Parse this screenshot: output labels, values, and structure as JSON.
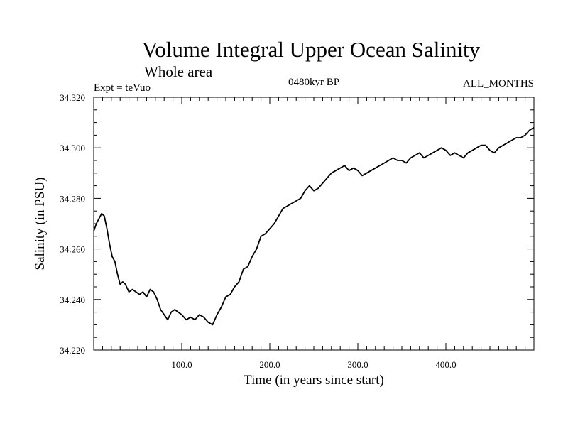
{
  "chart_data": {
    "type": "line",
    "title": "Volume Integral Upper Ocean Salinity",
    "subtitle": "Whole area",
    "left_label": "Expt = teVuo",
    "center_label": "0480kyr BP",
    "right_label": "ALL_MONTHS",
    "xlabel": "Time (in years since start)",
    "ylabel": "Salinity (in PSU)",
    "xlim": [
      0,
      500
    ],
    "ylim": [
      34.22,
      34.32
    ],
    "xticks": [
      100,
      200,
      300,
      400
    ],
    "xtick_labels": [
      "100.0",
      "200.0",
      "300.0",
      "400.0"
    ],
    "yticks": [
      34.22,
      34.24,
      34.26,
      34.28,
      34.3,
      34.32
    ],
    "ytick_labels": [
      "34.220",
      "34.240",
      "34.260",
      "34.280",
      "34.300",
      "34.320"
    ],
    "grid": false,
    "series": [
      {
        "color": "#000000",
        "x": [
          0,
          3,
          6,
          9,
          12,
          15,
          18,
          21,
          24,
          27,
          30,
          33,
          36,
          40,
          44,
          48,
          52,
          56,
          60,
          64,
          68,
          72,
          76,
          80,
          84,
          88,
          92,
          96,
          100,
          105,
          110,
          115,
          120,
          125,
          130,
          135,
          140,
          145,
          150,
          155,
          160,
          165,
          170,
          175,
          180,
          185,
          190,
          195,
          200,
          205,
          210,
          215,
          220,
          225,
          230,
          235,
          240,
          245,
          250,
          255,
          260,
          265,
          270,
          275,
          280,
          285,
          290,
          295,
          300,
          305,
          310,
          315,
          320,
          325,
          330,
          335,
          340,
          345,
          350,
          355,
          360,
          365,
          370,
          375,
          380,
          385,
          390,
          395,
          400,
          405,
          410,
          415,
          420,
          425,
          430,
          435,
          440,
          445,
          450,
          455,
          460,
          465,
          470,
          475,
          480,
          485,
          490,
          495,
          500
        ],
        "y": [
          34.267,
          34.27,
          34.272,
          34.274,
          34.273,
          34.268,
          34.262,
          34.257,
          34.255,
          34.25,
          34.246,
          34.247,
          34.246,
          34.243,
          34.244,
          34.243,
          34.242,
          34.243,
          34.241,
          34.244,
          34.243,
          34.24,
          34.236,
          34.234,
          34.232,
          34.235,
          34.236,
          34.235,
          34.234,
          34.232,
          34.233,
          34.232,
          34.234,
          34.233,
          34.231,
          34.23,
          34.234,
          34.237,
          34.241,
          34.242,
          34.245,
          34.247,
          34.252,
          34.253,
          34.257,
          34.26,
          34.265,
          34.266,
          34.268,
          34.27,
          34.273,
          34.276,
          34.277,
          34.278,
          34.279,
          34.28,
          34.283,
          34.285,
          34.283,
          34.284,
          34.286,
          34.288,
          34.29,
          34.291,
          34.292,
          34.293,
          34.291,
          34.292,
          34.291,
          34.289,
          34.29,
          34.291,
          34.292,
          34.293,
          34.294,
          34.295,
          34.296,
          34.295,
          34.295,
          34.294,
          34.296,
          34.297,
          34.298,
          34.296,
          34.297,
          34.298,
          34.299,
          34.3,
          34.299,
          34.297,
          34.298,
          34.297,
          34.296,
          34.298,
          34.299,
          34.3,
          34.301,
          34.301,
          34.299,
          34.298,
          34.3,
          34.301,
          34.302,
          34.303,
          34.304,
          34.304,
          34.305,
          34.307,
          34.308
        ]
      }
    ]
  }
}
